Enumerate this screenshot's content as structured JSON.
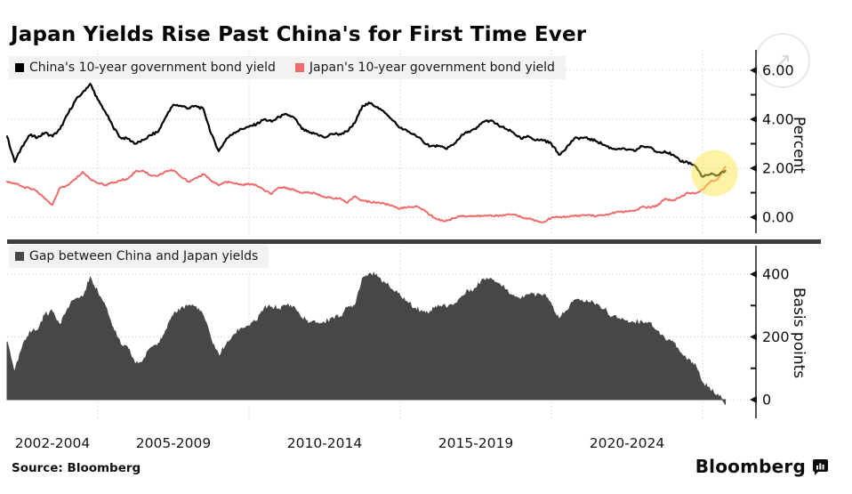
{
  "header": {
    "title": "Japan Yields Rise Past China's for First Time Ever"
  },
  "source_line": "Source: Bloomberg",
  "branding": {
    "wordmark": "Bloomberg"
  },
  "expand_button": {
    "glyph": "↗"
  },
  "colors": {
    "china_line": "#000000",
    "japan_line": "#ef6a6a",
    "gap_area": "#474747",
    "highlight": "#fbe84a",
    "legend_bg": "#f2f2f2",
    "grid": "#d4d4d4",
    "axis": "#2a2a2a",
    "divider": "#3d3d3d"
  },
  "x_axis": {
    "start": 2002,
    "step": 0.25,
    "labels": [
      "2002-2004",
      "2005-2009",
      "2010-2014",
      "2015-2019",
      "2020-2024"
    ],
    "gridline_years": [
      2005,
      2010,
      2015,
      2020,
      2025
    ]
  },
  "annotation": {
    "type": "highlight-circle",
    "year": 2025.4,
    "value": 1.8
  },
  "chart_data": [
    {
      "type": "line",
      "panel": "top",
      "ylabel": "Percent",
      "ylim": [
        -0.85,
        6.8
      ],
      "yticks": [
        {
          "v": 0,
          "label": "0.00"
        },
        {
          "v": 2,
          "label": "2.00"
        },
        {
          "v": 4,
          "label": "4.00"
        },
        {
          "v": 6,
          "label": "6.00"
        }
      ],
      "yminor": [
        1,
        3,
        5
      ],
      "series": [
        {
          "name": "China's 10-year government bond yield",
          "color": "#000000",
          "values": [
            3.3,
            2.25,
            2.9,
            3.35,
            3.25,
            3.45,
            3.3,
            3.6,
            4.2,
            4.75,
            5.1,
            5.45,
            4.8,
            4.3,
            3.7,
            3.25,
            3.2,
            3.0,
            3.15,
            3.35,
            3.5,
            4.1,
            4.6,
            4.55,
            4.45,
            4.55,
            4.4,
            3.4,
            2.7,
            3.2,
            3.45,
            3.6,
            3.7,
            3.8,
            4.0,
            3.9,
            4.1,
            4.2,
            4.05,
            3.6,
            3.45,
            3.4,
            3.25,
            3.4,
            3.4,
            3.5,
            3.85,
            4.55,
            4.65,
            4.5,
            4.25,
            3.95,
            3.65,
            3.5,
            3.35,
            3.1,
            2.9,
            2.9,
            2.8,
            2.95,
            3.3,
            3.5,
            3.6,
            3.9,
            3.95,
            3.75,
            3.6,
            3.45,
            3.2,
            3.3,
            3.15,
            3.15,
            3.0,
            2.55,
            2.85,
            3.2,
            3.25,
            3.2,
            3.1,
            2.95,
            2.8,
            2.8,
            2.75,
            2.7,
            2.9,
            2.85,
            2.65,
            2.7,
            2.55,
            2.3,
            2.25,
            2.1,
            1.65,
            1.75,
            1.72,
            1.9
          ]
        },
        {
          "name": "Japan's 10-year government bond yield",
          "color": "#ef6a6a",
          "values": [
            1.45,
            1.38,
            1.25,
            1.18,
            1.05,
            0.75,
            0.5,
            1.2,
            1.3,
            1.55,
            1.85,
            1.55,
            1.4,
            1.32,
            1.4,
            1.5,
            1.58,
            1.88,
            1.9,
            1.7,
            1.7,
            1.88,
            1.92,
            1.65,
            1.45,
            1.6,
            1.75,
            1.5,
            1.3,
            1.45,
            1.38,
            1.32,
            1.35,
            1.3,
            1.1,
            0.95,
            1.22,
            1.2,
            1.1,
            1.0,
            1.0,
            0.95,
            0.82,
            0.78,
            0.78,
            0.58,
            0.85,
            0.68,
            0.62,
            0.6,
            0.54,
            0.46,
            0.35,
            0.42,
            0.44,
            0.32,
            0.08,
            -0.1,
            -0.16,
            -0.05,
            0.06,
            0.04,
            0.05,
            0.05,
            0.08,
            0.04,
            0.1,
            0.12,
            0.0,
            -0.05,
            -0.15,
            -0.2,
            -0.02,
            0.0,
            0.02,
            0.04,
            0.08,
            0.09,
            0.05,
            0.08,
            0.16,
            0.22,
            0.23,
            0.25,
            0.42,
            0.4,
            0.46,
            0.76,
            0.68,
            0.8,
            1.0,
            0.96,
            1.12,
            1.45,
            1.55,
            2.06
          ]
        }
      ]
    },
    {
      "type": "area",
      "panel": "bottom",
      "ylabel": "Basis points",
      "ylim": [
        -60,
        490
      ],
      "yticks": [
        {
          "v": 0,
          "label": "0"
        },
        {
          "v": 200,
          "label": "200"
        },
        {
          "v": 400,
          "label": "400"
        }
      ],
      "yminor": [
        100,
        300
      ],
      "series": [
        {
          "name": "Gap between China and Japan yields",
          "color": "#474747",
          "values": [
            185,
            87,
            165,
            217,
            220,
            270,
            280,
            240,
            290,
            320,
            325,
            390,
            340,
            298,
            230,
            175,
            162,
            112,
            125,
            165,
            180,
            222,
            268,
            290,
            300,
            295,
            265,
            190,
            140,
            175,
            207,
            228,
            235,
            250,
            290,
            295,
            288,
            300,
            295,
            260,
            245,
            245,
            243,
            262,
            262,
            292,
            300,
            387,
            403,
            390,
            371,
            349,
            330,
            308,
            291,
            278,
            282,
            300,
            296,
            300,
            324,
            346,
            355,
            385,
            387,
            371,
            350,
            333,
            320,
            335,
            330,
            335,
            302,
            255,
            283,
            316,
            317,
            311,
            305,
            287,
            264,
            258,
            252,
            245,
            248,
            245,
            219,
            194,
            187,
            150,
            125,
            114,
            53,
            30,
            17,
            -16
          ]
        }
      ]
    }
  ]
}
